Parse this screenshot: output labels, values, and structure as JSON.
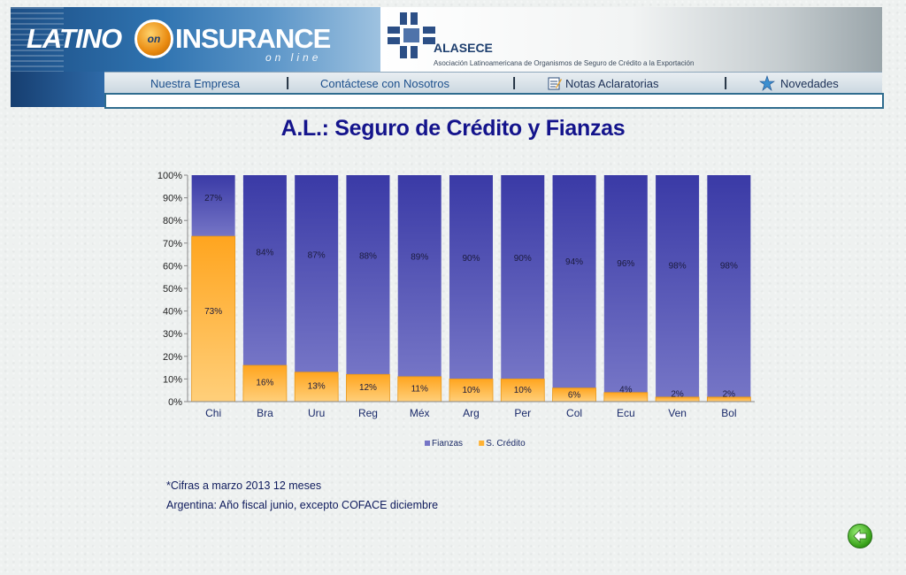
{
  "header": {
    "logo_latino": "LATINO",
    "logo_on": "on",
    "logo_insurance": "INSURANCE",
    "logo_online": "on line",
    "partner_name": "ALASECE",
    "partner_subtitle": "Asociación Latinoamericana de Organismos de Seguro de Crédito a la Exportación",
    "nav": {
      "items": [
        "Nuestra Empresa",
        "Contáctese con Nosotros",
        "Notas Aclaratorias",
        "Novedades"
      ],
      "separator": "|"
    }
  },
  "title": "A.L.: Seguro de Crédito y Fianzas",
  "chart_data": {
    "type": "bar",
    "stacked": "percent",
    "categories": [
      "Chi",
      "Bra",
      "Uru",
      "Reg",
      "Méx",
      "Arg",
      "Per",
      "Col",
      "Ecu",
      "Ven",
      "Bol"
    ],
    "series": [
      {
        "name": "Fianzas",
        "color": "#7575c6",
        "values": [
          27,
          84,
          87,
          88,
          89,
          90,
          90,
          94,
          96,
          98,
          98
        ]
      },
      {
        "name": "S. Crédito",
        "color": "#ffb233",
        "values": [
          73,
          16,
          13,
          12,
          11,
          10,
          10,
          6,
          4,
          2,
          2
        ]
      }
    ],
    "ylim": [
      0,
      100
    ],
    "y_ticks": [
      "0%",
      "10%",
      "20%",
      "30%",
      "40%",
      "50%",
      "60%",
      "70%",
      "80%",
      "90%",
      "100%"
    ],
    "data_label_suffix": "%",
    "legend": [
      "Fianzas",
      "S. Crédito"
    ],
    "legend_position": "bottom",
    "grid": false
  },
  "notes": [
    "*Cifras a marzo 2013 12 meses",
    "Argentina: Año fiscal junio, excepto COFACE diciembre"
  ],
  "icons": {
    "back": "back-arrow-icon",
    "notas": "notepad-icon",
    "novedades": "star-burst-icon",
    "partner_mark": "alasece-mark-icon"
  }
}
